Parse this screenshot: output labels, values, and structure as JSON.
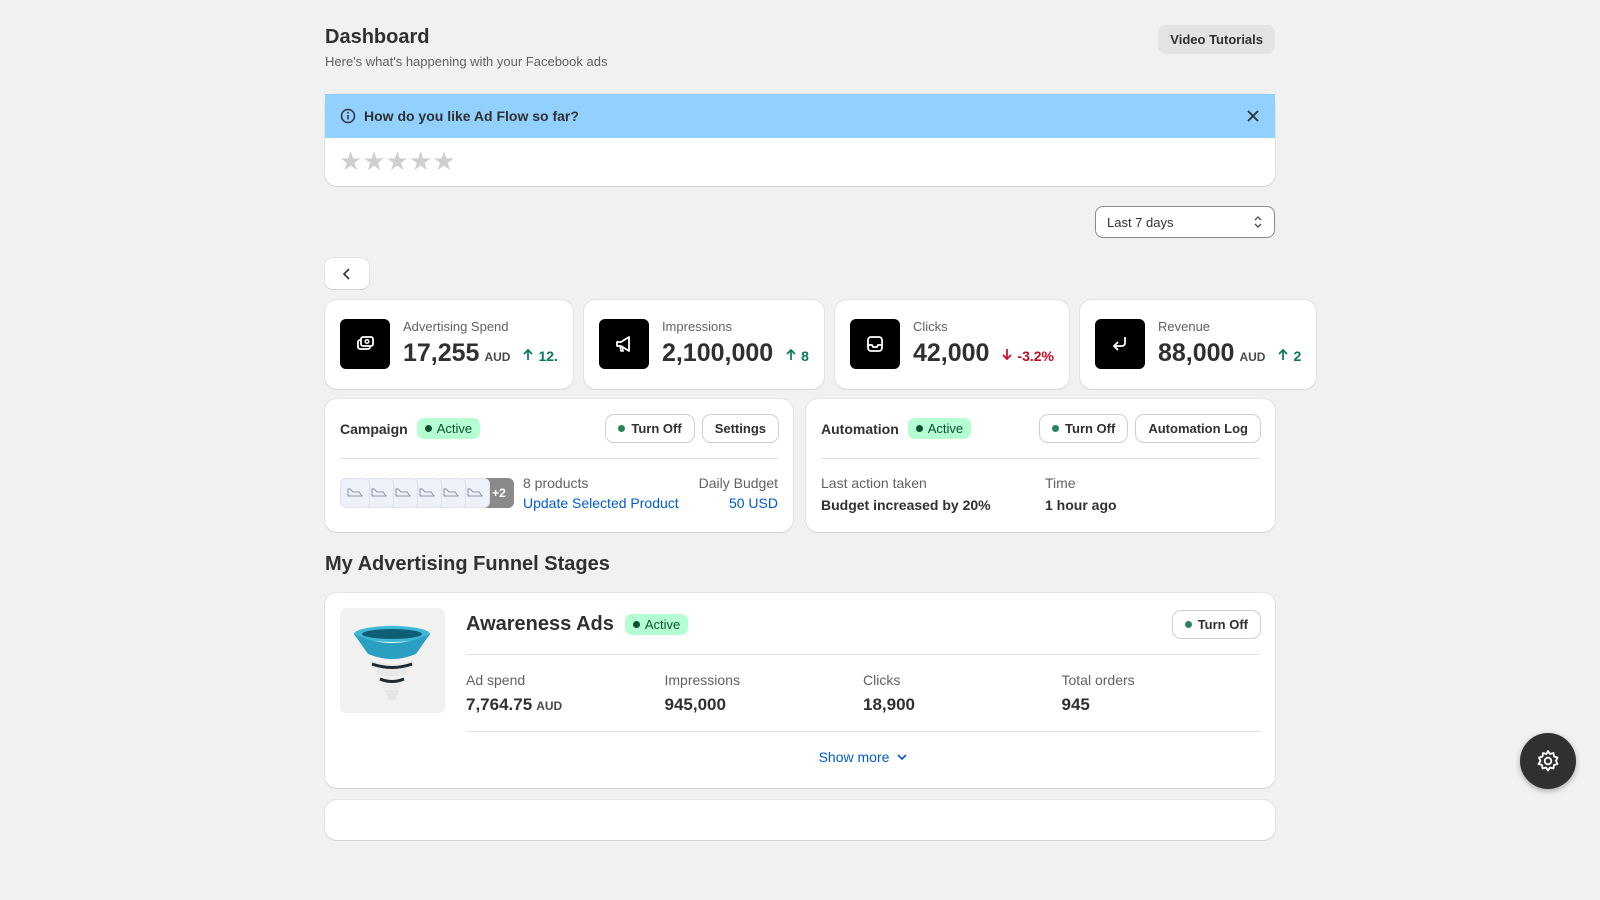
{
  "header": {
    "title": "Dashboard",
    "subtitle": "Here's what's happening with your Facebook ads",
    "button": "Video Tutorials"
  },
  "banner": {
    "question": "How do you like Ad Flow so far?"
  },
  "date_select": "Last 7 days",
  "metrics": [
    {
      "label": "Advertising Spend",
      "value": "17,255",
      "unit": "AUD",
      "change": "12.",
      "trend": "up"
    },
    {
      "label": "Impressions",
      "value": "2,100,000",
      "change": "8",
      "trend": "up"
    },
    {
      "label": "Clicks",
      "value": "42,000",
      "change": "-3.2%",
      "trend": "down"
    },
    {
      "label": "Revenue",
      "value": "88,000",
      "unit": "AUD",
      "change": "2",
      "trend": "up"
    }
  ],
  "campaign": {
    "title": "Campaign",
    "status": "Active",
    "buttons": [
      "Turn Off",
      "Settings"
    ],
    "more_products": "+2",
    "products": "8 products",
    "link": "Update Selected Product",
    "budget_label": "Daily Budget",
    "budget": "50 USD"
  },
  "automation": {
    "title": "Automation",
    "status": "Active",
    "buttons": [
      "Turn Off",
      "Automation Log"
    ],
    "last_label": "Last action taken",
    "last": "Budget increased by 20%",
    "time_label": "Time",
    "time": "1 hour ago"
  },
  "funnel": {
    "title": "My Advertising Funnel Stages",
    "stages": [
      {
        "name": "Awareness Ads",
        "status": "Active",
        "button": "Turn Off",
        "stats": [
          {
            "label": "Ad spend",
            "value": "7,764.75",
            "unit": "AUD"
          },
          {
            "label": "Impressions",
            "value": "945,000"
          },
          {
            "label": "Clicks",
            "value": "18,900"
          },
          {
            "label": "Total orders",
            "value": "945"
          }
        ],
        "show_more": "Show more"
      }
    ]
  }
}
